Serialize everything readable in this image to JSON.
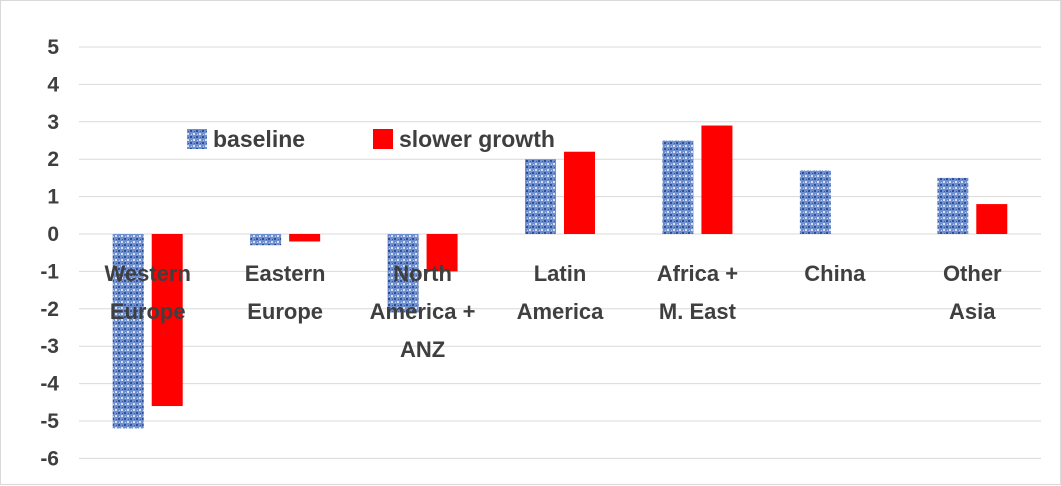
{
  "chart_data": {
    "type": "bar",
    "title": "",
    "xlabel": "",
    "ylabel": "",
    "ylim": [
      -6,
      5
    ],
    "yticks": [
      5,
      4,
      3,
      2,
      1,
      0,
      -1,
      -2,
      -3,
      -4,
      -5,
      -6
    ],
    "grid": true,
    "legend_position": "top-left",
    "categories": [
      [
        "Western",
        "Europe"
      ],
      [
        "Eastern",
        "Europe"
      ],
      [
        "North",
        "America +",
        "ANZ"
      ],
      [
        "Latin",
        "America"
      ],
      [
        "Africa +",
        "M. East"
      ],
      [
        "China"
      ],
      [
        "Other",
        "Asia"
      ]
    ],
    "series": [
      {
        "name": "baseline",
        "values": [
          -5.2,
          -0.3,
          -2.1,
          2.0,
          2.5,
          1.7,
          1.5
        ],
        "color": "#5b7fc4",
        "pattern": "blue-textured"
      },
      {
        "name": "slower growth",
        "values": [
          -4.6,
          -0.2,
          -1.0,
          2.2,
          2.9,
          0.0,
          0.8
        ],
        "color": "#ff0000",
        "pattern": "solid"
      }
    ]
  }
}
